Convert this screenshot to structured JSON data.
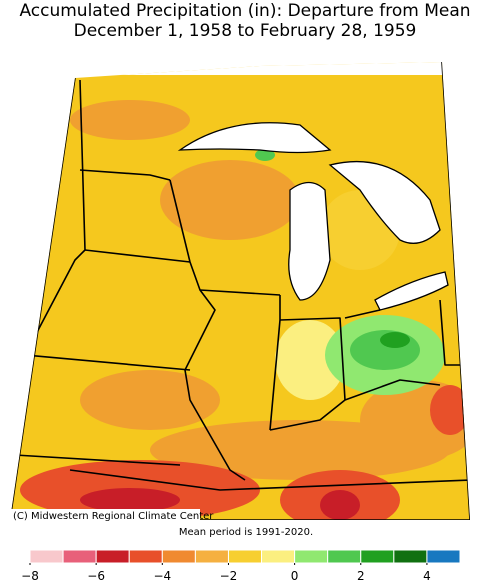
{
  "header": {
    "title": [
      "Accumulated Precipitation (in): Departure from Mean",
      "December 1, 1958 to February 28, 1959"
    ]
  },
  "map": {
    "credit": "(C) Midwestern Regional Climate Center"
  },
  "note": "Mean period is 1991-2020.",
  "legend": {
    "colors": [
      "#f8c8cc",
      "#e8607a",
      "#c81e28",
      "#e8502a",
      "#f08a30",
      "#f5b040",
      "#f7cf30",
      "#fbef80",
      "#90e870",
      "#50c850",
      "#20a020",
      "#107010",
      "#1878c0"
    ],
    "xlim": [
      -8,
      5
    ],
    "ticks": [
      {
        "value": -8,
        "label": "−8"
      },
      {
        "value": -6,
        "label": "−6"
      },
      {
        "value": -4,
        "label": "−4"
      },
      {
        "value": -2,
        "label": "−2"
      },
      0,
      2,
      4
    ]
  }
}
